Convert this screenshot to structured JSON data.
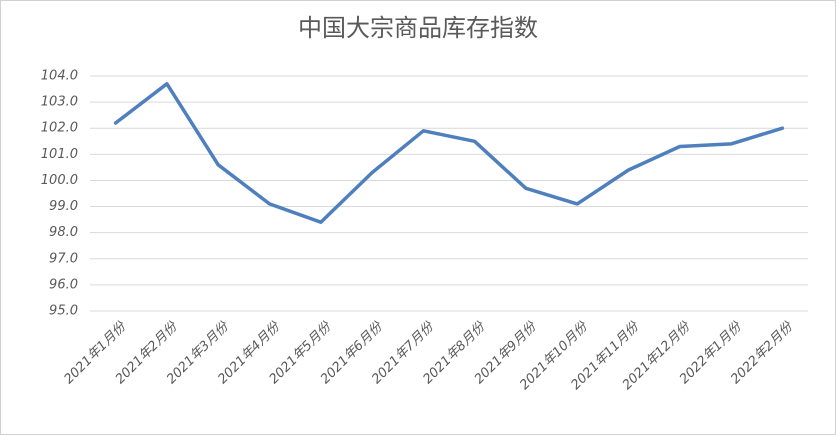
{
  "chart_data": {
    "type": "line",
    "title": "中国大宗商品库存指数",
    "categories": [
      "2021年1月份",
      "2021年2月份",
      "2021年3月份",
      "2021年4月份",
      "2021年5月份",
      "2021年6月份",
      "2021年7月份",
      "2021年8月份",
      "2021年9月份",
      "2021年10月份",
      "2021年11月份",
      "2021年12月份",
      "2022年1月份",
      "2022年2月份"
    ],
    "values": [
      102.2,
      103.7,
      100.6,
      99.1,
      98.4,
      100.3,
      101.9,
      101.5,
      99.7,
      99.1,
      100.4,
      101.3,
      101.4,
      102.0
    ],
    "color": "#4f7fbd",
    "ylim": [
      95,
      104
    ],
    "yticks": [
      {
        "value": 95,
        "label": "95.0"
      },
      {
        "value": 96,
        "label": "96.0"
      },
      {
        "value": 97,
        "label": "97.0"
      },
      {
        "value": 98,
        "label": "98.0"
      },
      {
        "value": 99,
        "label": "99.0"
      },
      {
        "value": 100,
        "label": "100.0"
      },
      {
        "value": 101,
        "label": "101.0"
      },
      {
        "value": 102,
        "label": "102.0"
      },
      {
        "value": 103,
        "label": "103.0"
      },
      {
        "value": 104,
        "label": "104.0"
      }
    ],
    "grid": true
  }
}
